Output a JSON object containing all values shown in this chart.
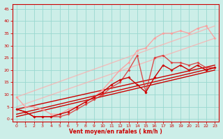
{
  "background_color": "#cceee8",
  "grid_color": "#99d8d0",
  "xlabel": "Vent moyen/en rafales ( km/h )",
  "xlabel_color": "#cc0000",
  "axis_color": "#cc0000",
  "tick_color": "#cc0000",
  "xlim": [
    -0.5,
    23.5
  ],
  "ylim": [
    -1,
    47
  ],
  "xticks": [
    0,
    1,
    2,
    3,
    4,
    5,
    6,
    7,
    8,
    9,
    10,
    11,
    12,
    13,
    14,
    15,
    16,
    17,
    18,
    19,
    20,
    21,
    22,
    23
  ],
  "yticks": [
    0,
    5,
    10,
    15,
    20,
    25,
    30,
    35,
    40,
    45
  ],
  "lines": [
    {
      "x": [
        0,
        1,
        2,
        3,
        4,
        5,
        6,
        7,
        8,
        9,
        10,
        11,
        12,
        13,
        14,
        15,
        16,
        17,
        18,
        19,
        20,
        21,
        22,
        23
      ],
      "y": [
        9,
        5,
        5,
        4,
        2,
        2,
        4,
        5,
        7,
        9,
        12,
        16,
        20,
        23,
        28,
        29,
        33,
        35,
        35,
        36,
        35,
        37,
        38,
        33
      ],
      "color": "#ff9999",
      "lw": 1.0,
      "marker": "D",
      "ms": 2.0,
      "alpha": 0.85
    },
    {
      "x": [
        0,
        1,
        2,
        3,
        4,
        5,
        6,
        7,
        8,
        9,
        10,
        11,
        12,
        13,
        14,
        15,
        16,
        17,
        18,
        19,
        20,
        21,
        22,
        23
      ],
      "y": [
        4,
        3,
        1,
        1,
        1,
        1,
        2,
        4,
        6,
        8,
        10,
        13,
        15,
        20,
        26,
        11,
        25,
        26,
        23,
        23,
        22,
        23,
        21,
        21
      ],
      "color": "#dd3333",
      "lw": 1.0,
      "marker": "D",
      "ms": 2.0,
      "alpha": 0.85
    },
    {
      "x": [
        0,
        23
      ],
      "y": [
        5,
        33
      ],
      "color": "#ffaaaa",
      "lw": 1.0,
      "marker": null,
      "ms": 0,
      "alpha": 0.7
    },
    {
      "x": [
        0,
        23
      ],
      "y": [
        9,
        38
      ],
      "color": "#ffaaaa",
      "lw": 1.0,
      "marker": null,
      "ms": 0,
      "alpha": 0.7
    },
    {
      "x": [
        0,
        23
      ],
      "y": [
        1,
        20
      ],
      "color": "#cc0000",
      "lw": 1.0,
      "marker": null,
      "ms": 0,
      "alpha": 1.0
    },
    {
      "x": [
        0,
        23
      ],
      "y": [
        4,
        22
      ],
      "color": "#cc0000",
      "lw": 1.0,
      "marker": null,
      "ms": 0,
      "alpha": 1.0
    },
    {
      "x": [
        0,
        1,
        2,
        3,
        4,
        5,
        6,
        7,
        8,
        9,
        10,
        11,
        12,
        13,
        14,
        15,
        16,
        17,
        18,
        19,
        20,
        21,
        22,
        23
      ],
      "y": [
        4,
        3,
        1,
        1,
        1,
        2,
        3,
        5,
        7,
        9,
        11,
        14,
        16,
        17,
        14,
        11,
        17,
        22,
        20,
        22,
        20,
        22,
        20,
        21
      ],
      "color": "#cc0000",
      "lw": 1.0,
      "marker": "D",
      "ms": 2.0,
      "alpha": 1.0
    },
    {
      "x": [
        0,
        23
      ],
      "y": [
        2,
        21
      ],
      "color": "#cc0000",
      "lw": 1.0,
      "marker": null,
      "ms": 0,
      "alpha": 1.0
    }
  ]
}
